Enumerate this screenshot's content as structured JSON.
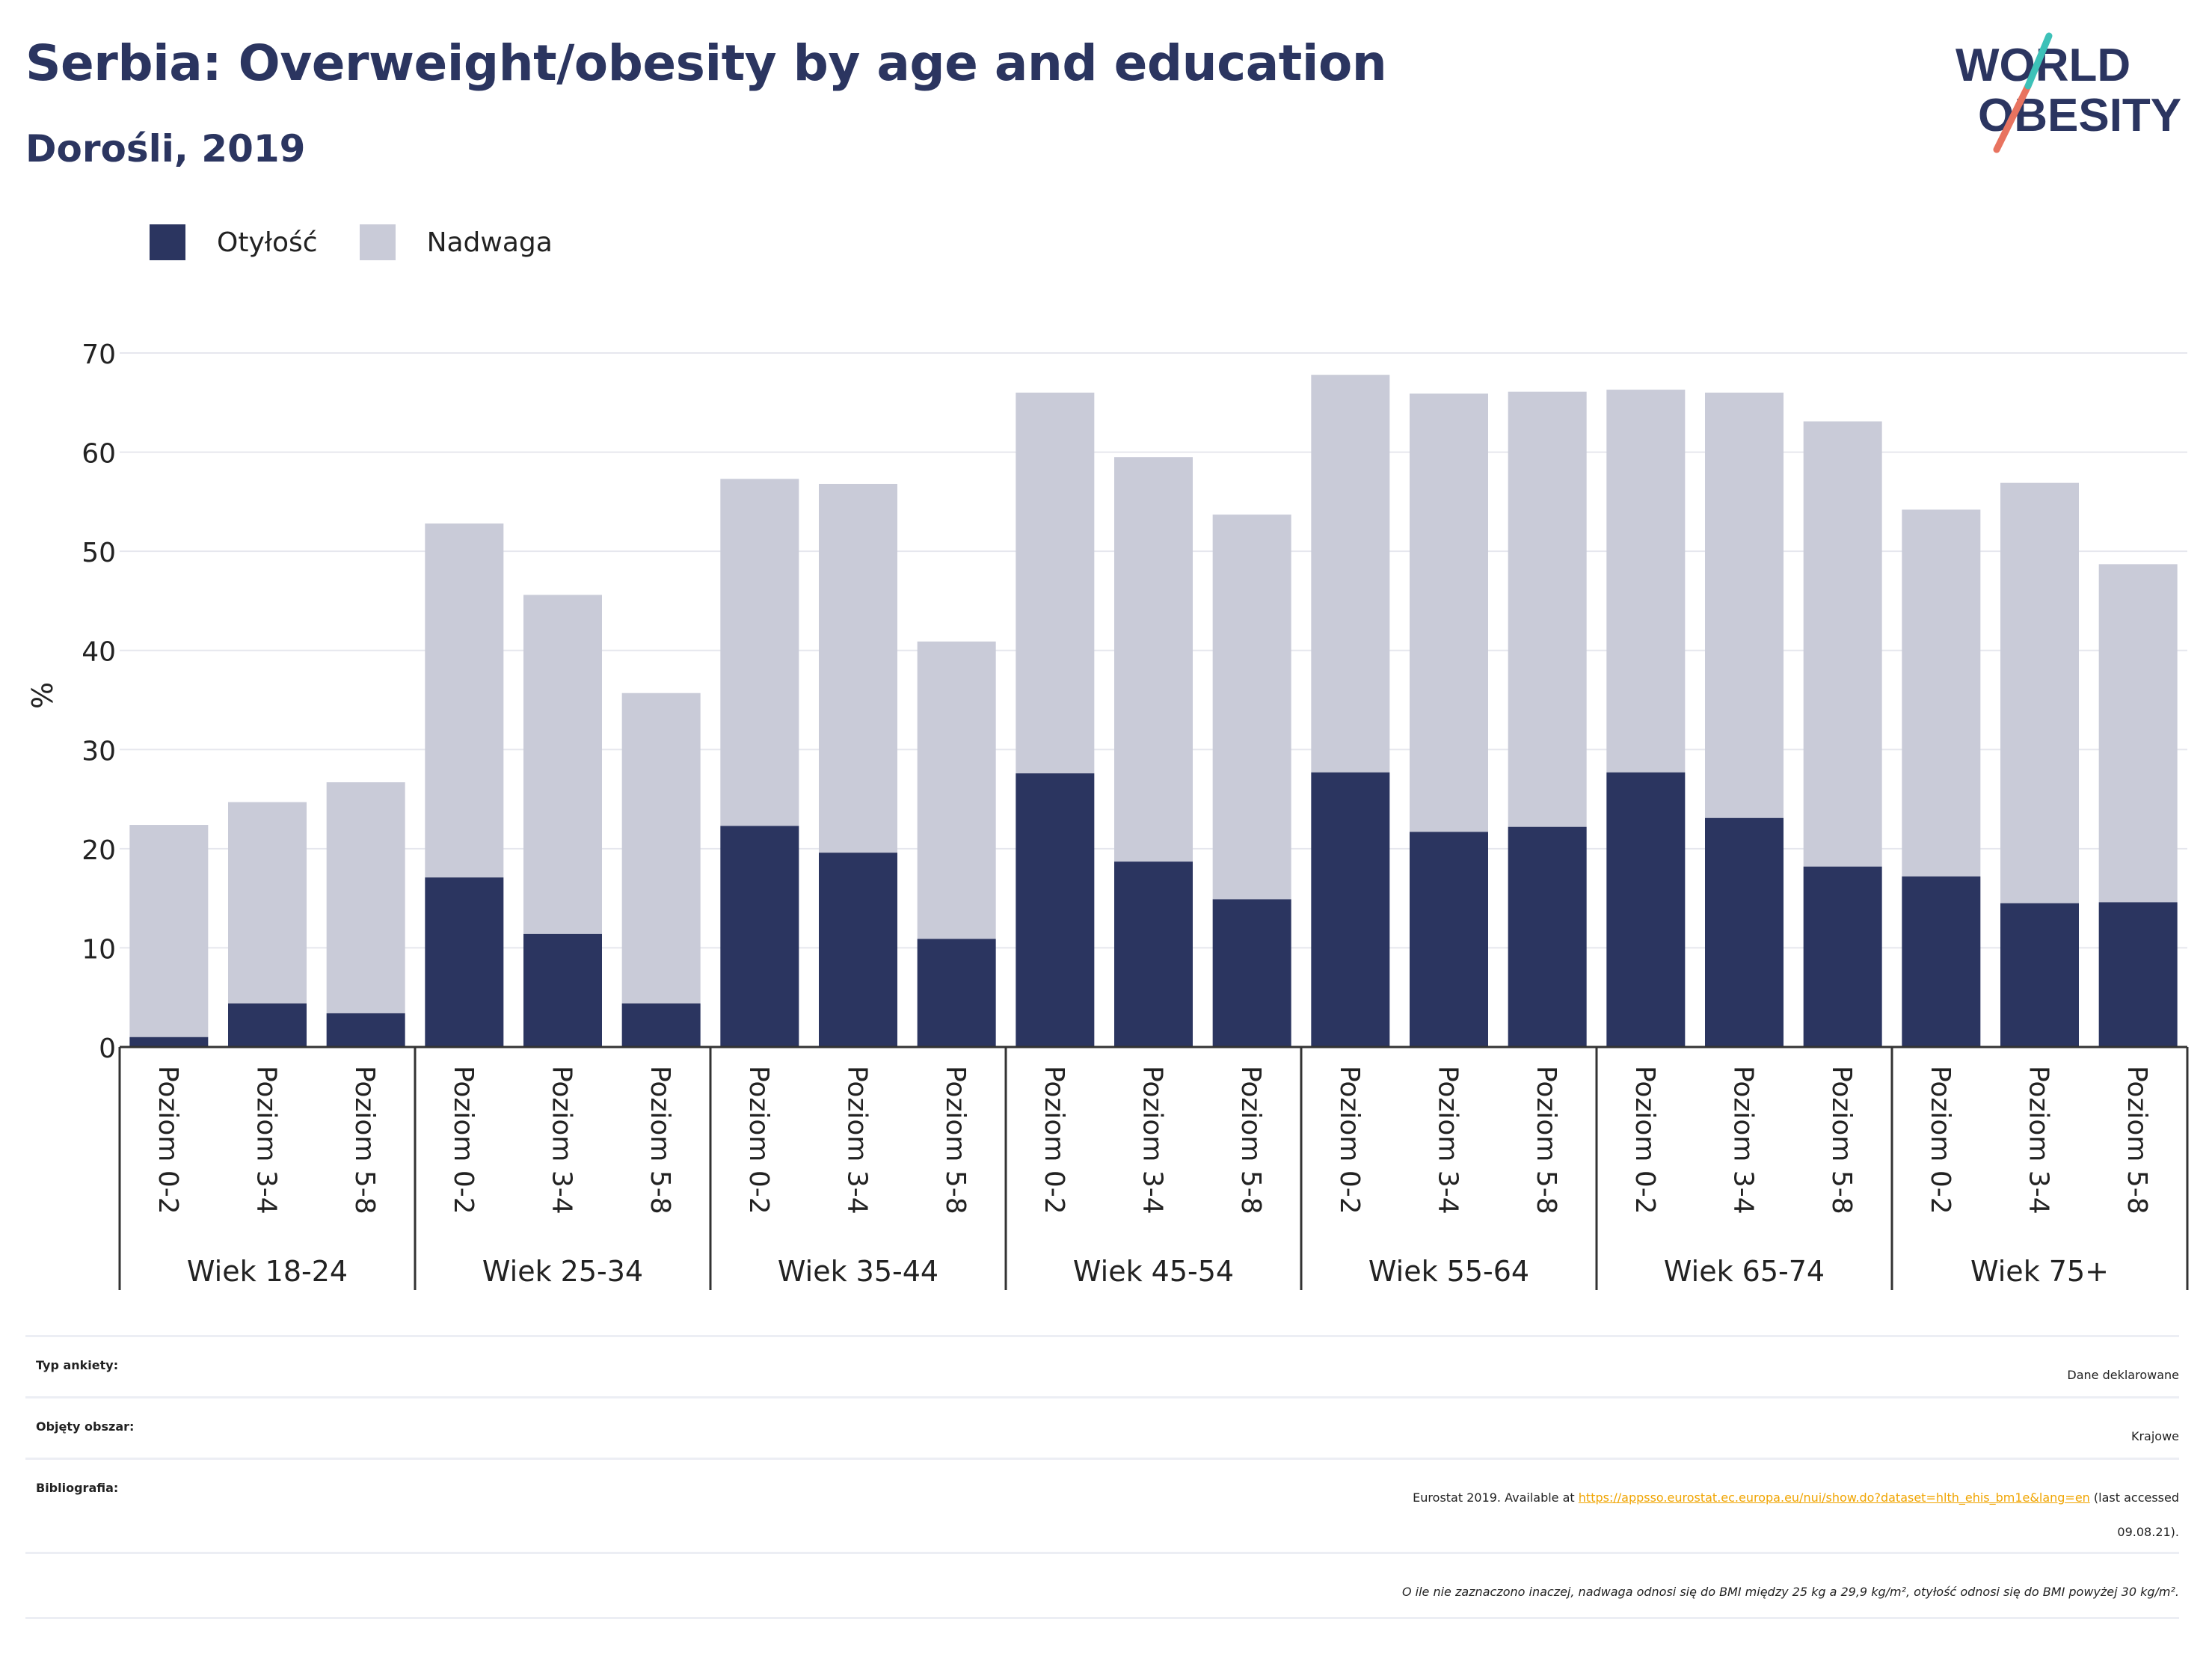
{
  "header": {
    "title": "Serbia: Overweight/obesity by age and education",
    "subtitle": "Dorośli, 2019",
    "logo_line1": "WORLD",
    "logo_line2": "OBESITY"
  },
  "legend": [
    {
      "label": "Otyłość",
      "color": "#2b3560"
    },
    {
      "label": "Nadwaga",
      "color": "#c9cbd8"
    }
  ],
  "chart_data": {
    "type": "bar",
    "stacked": true,
    "ylabel": "%",
    "ylim": [
      0,
      70
    ],
    "yticks": [
      0,
      10,
      20,
      30,
      40,
      50,
      60,
      70
    ],
    "grid": true,
    "legend_position": "top-left",
    "groups": [
      "Wiek 18-24",
      "Wiek 25-34",
      "Wiek 35-44",
      "Wiek 45-54",
      "Wiek 55-64",
      "Wiek 65-74",
      "Wiek 75+"
    ],
    "subcategories": [
      "Poziom 0-2",
      "Poziom 3-4",
      "Poziom 5-8"
    ],
    "series": [
      {
        "name": "Otyłość",
        "color": "#2b3560",
        "values": [
          1.0,
          4.4,
          3.4,
          17.1,
          11.4,
          4.4,
          22.3,
          19.6,
          10.9,
          27.6,
          18.7,
          14.9,
          27.7,
          21.7,
          22.2,
          27.7,
          23.1,
          18.2,
          17.2,
          14.5,
          14.6
        ]
      },
      {
        "name": "Nadwaga",
        "color": "#c9cbd8",
        "values": [
          21.4,
          20.3,
          23.3,
          35.7,
          34.2,
          31.3,
          35.0,
          37.2,
          30.0,
          38.4,
          40.8,
          38.8,
          40.1,
          44.2,
          43.9,
          38.6,
          42.9,
          44.9,
          37.0,
          42.4,
          34.1
        ]
      }
    ]
  },
  "meta": {
    "survey_label": "Typ ankiety:",
    "survey_value": "Dane deklarowane",
    "area_label": "Objęty obszar:",
    "area_value": "Krajowe",
    "bib_label": "Bibliografia:",
    "bib_prefix": "Eurostat 2019. Available at ",
    "bib_link": "https://appsso.eurostat.ec.europa.eu/nui/show.do?dataset=hlth_ehis_bm1e&lang=en",
    "bib_suffix_1": " (last accessed",
    "bib_suffix_2": "09.08.21).",
    "note": "O ile nie zaznaczono inaczej, nadwaga odnosi się do BMI między 25 kg a 29,9 kg/m², otyłość odnosi się do BMI powyżej 30 kg/m²."
  }
}
